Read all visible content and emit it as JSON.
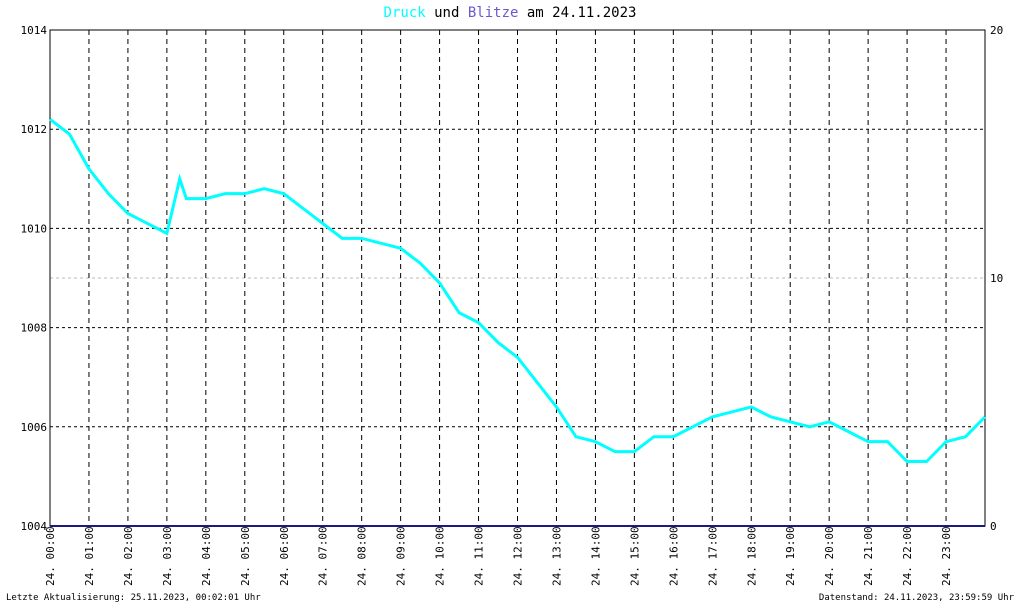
{
  "chart_data": {
    "type": "line",
    "title_parts": [
      "und",
      "am 24.11.2023"
    ],
    "xlim": [
      0,
      24
    ],
    "xticks": [
      {
        "value": 0,
        "label": "24. 00:00"
      },
      {
        "value": 1,
        "label": "24. 01:00"
      },
      {
        "value": 2,
        "label": "24. 02:00"
      },
      {
        "value": 3,
        "label": "24. 03:00"
      },
      {
        "value": 4,
        "label": "24. 04:00"
      },
      {
        "value": 5,
        "label": "24. 05:00"
      },
      {
        "value": 6,
        "label": "24. 06:00"
      },
      {
        "value": 7,
        "label": "24. 07:00"
      },
      {
        "value": 8,
        "label": "24. 08:00"
      },
      {
        "value": 9,
        "label": "24. 09:00"
      },
      {
        "value": 10,
        "label": "24. 10:00"
      },
      {
        "value": 11,
        "label": "24. 11:00"
      },
      {
        "value": 12,
        "label": "24. 12:00"
      },
      {
        "value": 13,
        "label": "24. 13:00"
      },
      {
        "value": 14,
        "label": "24. 14:00"
      },
      {
        "value": 15,
        "label": "24. 15:00"
      },
      {
        "value": 16,
        "label": "24. 16:00"
      },
      {
        "value": 17,
        "label": "24. 17:00"
      },
      {
        "value": 18,
        "label": "24. 18:00"
      },
      {
        "value": 19,
        "label": "24. 19:00"
      },
      {
        "value": 20,
        "label": "24. 20:00"
      },
      {
        "value": 21,
        "label": "24. 21:00"
      },
      {
        "value": 22,
        "label": "24. 22:00"
      },
      {
        "value": 23,
        "label": "24. 23:00"
      }
    ],
    "ylim": [
      1004,
      1014
    ],
    "yticks": [
      1004,
      1006,
      1008,
      1010,
      1012,
      1014
    ],
    "y2lim": [
      0,
      20
    ],
    "y2ticks": [
      0,
      10,
      20
    ],
    "grid": true,
    "series": [
      {
        "name": "Druck",
        "color": "#00ffff",
        "x": [
          0,
          0.5,
          1,
          1.5,
          2,
          2.5,
          3,
          3.33,
          3.5,
          4,
          4.5,
          5,
          5.5,
          6,
          6.5,
          7,
          7.5,
          8,
          8.5,
          9,
          9.5,
          10,
          10.5,
          11,
          11.5,
          12,
          12.5,
          13,
          13.5,
          14,
          14.5,
          15,
          15.5,
          16,
          16.5,
          17,
          17.5,
          18,
          18.5,
          19,
          19.5,
          20,
          20.5,
          21,
          21.5,
          22,
          22.5,
          23,
          23.5,
          24
        ],
        "values": [
          1012.2,
          1011.9,
          1011.2,
          1010.7,
          1010.3,
          1010.1,
          1009.9,
          1011,
          1010.6,
          1010.6,
          1010.7,
          1010.7,
          1010.8,
          1010.7,
          1010.4,
          1010.1,
          1009.8,
          1009.8,
          1009.7,
          1009.6,
          1009.3,
          1008.9,
          1008.3,
          1008.1,
          1007.7,
          1007.4,
          1006.9,
          1006.4,
          1005.8,
          1005.7,
          1005.5,
          1005.5,
          1005.8,
          1005.8,
          1006.0,
          1006.2,
          1006.3,
          1006.4,
          1006.2,
          1006.1,
          1006.0,
          1006.1,
          1005.9,
          1005.7,
          1005.7,
          1005.3,
          1005.3,
          1005.7,
          1005.8,
          1006.2
        ]
      },
      {
        "name": "Blitze",
        "color": "#1a1a80",
        "axis": "y2",
        "x": [
          0,
          24
        ],
        "values": [
          0,
          0
        ]
      }
    ],
    "footer_left": "Letzte Aktualisierung: 25.11.2023, 00:02:01 Uhr",
    "footer_right": "Datenstand: 24.11.2023, 23:59:59 Uhr"
  }
}
